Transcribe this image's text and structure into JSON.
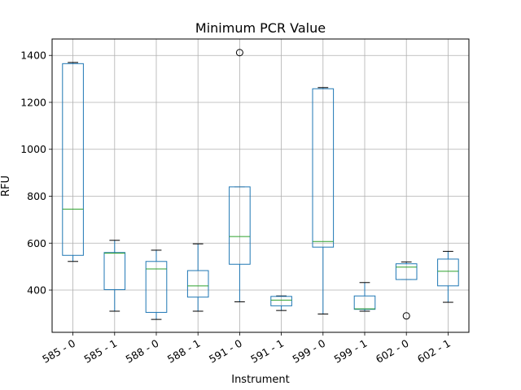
{
  "chart_data": {
    "type": "box",
    "title": "Minimum PCR Value",
    "xlabel": "Instrument",
    "ylabel": "RFU",
    "ylim": [
      220,
      1470
    ],
    "yticks": [
      400,
      600,
      800,
      1000,
      1200,
      1400
    ],
    "grid": true,
    "box_color": "#1f77b4",
    "median_color": "#2ca02c",
    "categories": [
      "585 - 0",
      "585 - 1",
      "588 - 0",
      "588 - 1",
      "591 - 0",
      "591 - 1",
      "599 - 0",
      "599 - 1",
      "602 - 0",
      "602 - 1"
    ],
    "boxes": [
      {
        "whisker_low": 522,
        "q1": 548,
        "median": 745,
        "q3": 1365,
        "whisker_high": 1370,
        "outliers": []
      },
      {
        "whisker_low": 310,
        "q1": 402,
        "median": 557,
        "q3": 560,
        "whisker_high": 612,
        "outliers": []
      },
      {
        "whisker_low": 275,
        "q1": 305,
        "median": 490,
        "q3": 522,
        "whisker_high": 570,
        "outliers": []
      },
      {
        "whisker_low": 310,
        "q1": 370,
        "median": 418,
        "q3": 483,
        "whisker_high": 597,
        "outliers": []
      },
      {
        "whisker_low": 350,
        "q1": 510,
        "median": 628,
        "q3": 840,
        "whisker_high": 840,
        "outliers": [
          1412
        ]
      },
      {
        "whisker_low": 313,
        "q1": 333,
        "median": 357,
        "q3": 373,
        "whisker_high": 375,
        "outliers": []
      },
      {
        "whisker_low": 298,
        "q1": 583,
        "median": 607,
        "q3": 1258,
        "whisker_high": 1263,
        "outliers": []
      },
      {
        "whisker_low": 310,
        "q1": 318,
        "median": 320,
        "q3": 375,
        "whisker_high": 432,
        "outliers": []
      },
      {
        "whisker_low": 445,
        "q1": 445,
        "median": 498,
        "q3": 512,
        "whisker_high": 520,
        "outliers": [
          290
        ]
      },
      {
        "whisker_low": 348,
        "q1": 418,
        "median": 480,
        "q3": 532,
        "whisker_high": 565,
        "outliers": []
      }
    ]
  }
}
